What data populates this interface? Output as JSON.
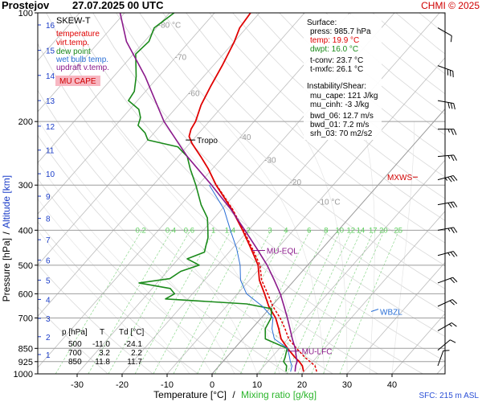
{
  "header": {
    "station": "Prostejov",
    "datetime": "27.07.2025 00 UTC",
    "credit": "CHMI © 2025"
  },
  "chart_data": {
    "type": "line",
    "title": "SKEW-T",
    "xlabel_temp": "Temperature [°C]",
    "xlabel_sep": "/",
    "xlabel_mix": "Mixing ratio [g/kg]",
    "ylabel_pressure": "Pressure [hPa]",
    "ylabel_sep": "/",
    "ylabel_altitude": "Altitude [km]",
    "sfc_label": "SFC: 215 m ASL",
    "xlim": [
      -35,
      45
    ],
    "ylim_hpa": [
      1000,
      100
    ],
    "x_ticks": [
      -30,
      -20,
      -10,
      0,
      10,
      20,
      30,
      40
    ],
    "pressure_ticks": [
      100,
      200,
      300,
      400,
      500,
      600,
      700,
      850,
      925,
      1000
    ],
    "altitude_ticks_km": [
      1,
      2,
      3,
      4,
      5,
      6,
      7,
      8,
      9,
      10,
      11,
      12,
      13,
      14,
      15,
      16
    ],
    "altitude_pressure_hpa": [
      884,
      789,
      702,
      622,
      550,
      484,
      425,
      371,
      322,
      279,
      240,
      206,
      175,
      149,
      127,
      108
    ],
    "isotherm_labels": [
      {
        "t": -80,
        "label": "-80 °C"
      },
      {
        "t": -70,
        "label": "-70"
      },
      {
        "t": -60,
        "label": "-60"
      },
      {
        "t": -40,
        "label": "-40"
      },
      {
        "t": -30,
        "label": "-30"
      },
      {
        "t": -20,
        "label": "-20"
      },
      {
        "t": -10,
        "label": "-10 °C"
      }
    ],
    "mixing_ratio_labels": [
      "0.2",
      "0.4",
      "0.6",
      "1",
      "1.4",
      "2",
      "3",
      "4",
      "6",
      "8",
      "10",
      "12",
      "14",
      "17",
      "20",
      "25"
    ],
    "mixing_ratio_values": [
      0.2,
      0.4,
      0.6,
      1,
      1.4,
      2,
      3,
      4,
      6,
      8,
      10,
      12,
      14,
      17,
      20,
      25
    ],
    "legend": [
      {
        "label": "temperature",
        "color": "#e00000"
      },
      {
        "label": "virt.temp.",
        "color": "#e00000"
      },
      {
        "label": "dew point",
        "color": "#1a8a1a"
      },
      {
        "label": "wet bulb temp.",
        "color": "#2a6fd6"
      },
      {
        "label": "updraft v.temp.",
        "color": "#8b1a8b"
      }
    ],
    "mu_cape_label": "MU CAPE",
    "series": [
      {
        "name": "temperature",
        "color": "#e00000",
        "points": [
          [
            985.7,
            19.9
          ],
          [
            950,
            18.5
          ],
          [
            925,
            17.0
          ],
          [
            900,
            15.2
          ],
          [
            850,
            11.8
          ],
          [
            800,
            8.5
          ],
          [
            750,
            6.0
          ],
          [
            700,
            3.2
          ],
          [
            650,
            -0.6
          ],
          [
            600,
            -4.0
          ],
          [
            550,
            -7.8
          ],
          [
            500,
            -11.0
          ],
          [
            450,
            -15.8
          ],
          [
            400,
            -21.3
          ],
          [
            350,
            -27.8
          ],
          [
            300,
            -36.0
          ],
          [
            270,
            -41.0
          ],
          [
            250,
            -45.0
          ],
          [
            230,
            -49.5
          ],
          [
            220,
            -51.5
          ],
          [
            210,
            -52.5
          ],
          [
            200,
            -53.0
          ],
          [
            180,
            -55.0
          ],
          [
            160,
            -56.5
          ],
          [
            140,
            -58.0
          ],
          [
            120,
            -60.0
          ],
          [
            110,
            -61.5
          ],
          [
            100,
            -62.0
          ]
        ]
      },
      {
        "name": "virt.temp.",
        "color": "#e00000",
        "points": [
          [
            985.7,
            22.8
          ],
          [
            950,
            21.3
          ],
          [
            925,
            19.4
          ],
          [
            900,
            17.4
          ],
          [
            850,
            13.8
          ],
          [
            800,
            10.2
          ],
          [
            750,
            7.4
          ],
          [
            700,
            4.2
          ],
          [
            650,
            0.3
          ],
          [
            600,
            -3.3
          ],
          [
            550,
            -7.3
          ],
          [
            500,
            -10.6
          ],
          [
            450,
            -15.5
          ],
          [
            400,
            -21.1
          ],
          [
            350,
            -27.6
          ],
          [
            300,
            -35.9
          ]
        ]
      },
      {
        "name": "dew point",
        "color": "#1a8a1a",
        "points": [
          [
            985.7,
            16.0
          ],
          [
            950,
            15.0
          ],
          [
            925,
            13.5
          ],
          [
            900,
            13.0
          ],
          [
            850,
            11.7
          ],
          [
            800,
            5.0
          ],
          [
            750,
            3.0
          ],
          [
            700,
            2.2
          ],
          [
            660,
            0.5
          ],
          [
            640,
            -6.0
          ],
          [
            620,
            -25.0
          ],
          [
            600,
            -24.0
          ],
          [
            580,
            -26.0
          ],
          [
            560,
            -34.0
          ],
          [
            545,
            -28.0
          ],
          [
            520,
            -27.0
          ],
          [
            500,
            -24.1
          ],
          [
            480,
            -28.0
          ],
          [
            460,
            -25.5
          ],
          [
            440,
            -26.5
          ],
          [
            420,
            -27.5
          ],
          [
            400,
            -29.0
          ],
          [
            370,
            -31.5
          ],
          [
            340,
            -35.5
          ],
          [
            300,
            -40.5
          ],
          [
            270,
            -45.0
          ],
          [
            250,
            -48.0
          ],
          [
            235,
            -52.0
          ],
          [
            225,
            -60.0
          ],
          [
            215,
            -62.0
          ],
          [
            205,
            -65.0
          ],
          [
            195,
            -66.0
          ],
          [
            185,
            -68.0
          ],
          [
            175,
            -72.0
          ],
          [
            165,
            -72.5
          ],
          [
            150,
            -75.0
          ],
          [
            130,
            -79.5
          ],
          [
            120,
            -79.0
          ],
          [
            110,
            -80.5
          ],
          [
            100,
            -79.0
          ]
        ]
      },
      {
        "name": "wet bulb temp.",
        "color": "#2a6fd6",
        "points": [
          [
            985.7,
            17.0
          ],
          [
            950,
            16.2
          ],
          [
            925,
            15.0
          ],
          [
            900,
            14.0
          ],
          [
            850,
            11.8
          ],
          [
            800,
            7.0
          ],
          [
            750,
            4.5
          ],
          [
            700,
            2.6
          ],
          [
            650,
            -2.0
          ],
          [
            600,
            -8.0
          ],
          [
            550,
            -12.0
          ],
          [
            500,
            -15.0
          ],
          [
            450,
            -19.0
          ],
          [
            400,
            -24.0
          ],
          [
            350,
            -29.5
          ],
          [
            300,
            -37.5
          ]
        ]
      },
      {
        "name": "updraft v.temp.",
        "color": "#8b1a8b",
        "points": [
          [
            985.7,
            18.0
          ],
          [
            950,
            17.0
          ],
          [
            925,
            16.5
          ],
          [
            900,
            15.5
          ],
          [
            850,
            13.5
          ],
          [
            800,
            11.0
          ],
          [
            750,
            8.5
          ],
          [
            700,
            5.8
          ],
          [
            650,
            2.8
          ],
          [
            600,
            -0.5
          ],
          [
            550,
            -4.5
          ],
          [
            500,
            -9.0
          ],
          [
            450,
            -14.5
          ],
          [
            400,
            -20.8
          ],
          [
            350,
            -28.0
          ],
          [
            300,
            -37.0
          ],
          [
            250,
            -48.0
          ],
          [
            200,
            -60.0
          ],
          [
            150,
            -73.0
          ],
          [
            120,
            -84.0
          ],
          [
            100,
            -91.0
          ]
        ]
      }
    ],
    "annotations": [
      {
        "label": "Tropo",
        "p": 225,
        "t": -50.5
      },
      {
        "label": "MU-EQL",
        "p": 455,
        "t": -14.5
      },
      {
        "label": "MU-LFC",
        "p": 865,
        "t": 13.0
      },
      {
        "label": "MXWS",
        "p": 285
      },
      {
        "label": "WBZL",
        "p": 672
      }
    ],
    "surface_box": {
      "title": "Surface:",
      "press": "press: 985.7 hPa",
      "temp": "temp: 19.9 °C",
      "dwpt": "dwpt: 16.0 °C",
      "tconv": "t-conv: 23.7 °C",
      "tmxfc": "t-mxfc: 26.1 °C",
      "instab_title": "Instability/Shear:",
      "mu_cape": "mu_cape: 121 J/kg",
      "mu_cinh": "mu_cinh: -3 J/kg",
      "bwd06": "bwd_06: 12.7 m/s",
      "bwd01": "bwd_01: 7.2 m/s",
      "srh03": "srh_03: 70 m2/s2"
    },
    "table": {
      "headers": [
        "p [hPa]",
        "T",
        "Td [°C]"
      ],
      "rows": [
        [
          "500",
          "-11.0",
          "-24.1"
        ],
        [
          "700",
          "3.2",
          "2.2"
        ],
        [
          "850",
          "11.8",
          "11.7"
        ]
      ]
    },
    "wind_barbs": [
      {
        "p": 110,
        "dir": 300,
        "spd": 10
      },
      {
        "p": 140,
        "dir": 290,
        "spd": 30
      },
      {
        "p": 175,
        "dir": 280,
        "spd": 30
      },
      {
        "p": 210,
        "dir": 270,
        "spd": 25
      },
      {
        "p": 250,
        "dir": 265,
        "spd": 25
      },
      {
        "p": 290,
        "dir": 255,
        "spd": 35
      },
      {
        "p": 340,
        "dir": 260,
        "spd": 30
      },
      {
        "p": 400,
        "dir": 260,
        "spd": 25
      },
      {
        "p": 470,
        "dir": 255,
        "spd": 25
      },
      {
        "p": 560,
        "dir": 250,
        "spd": 20
      },
      {
        "p": 650,
        "dir": 245,
        "spd": 20
      },
      {
        "p": 760,
        "dir": 240,
        "spd": 15
      },
      {
        "p": 860,
        "dir": 230,
        "spd": 10
      },
      {
        "p": 950,
        "dir": 200,
        "spd": 10
      }
    ]
  }
}
